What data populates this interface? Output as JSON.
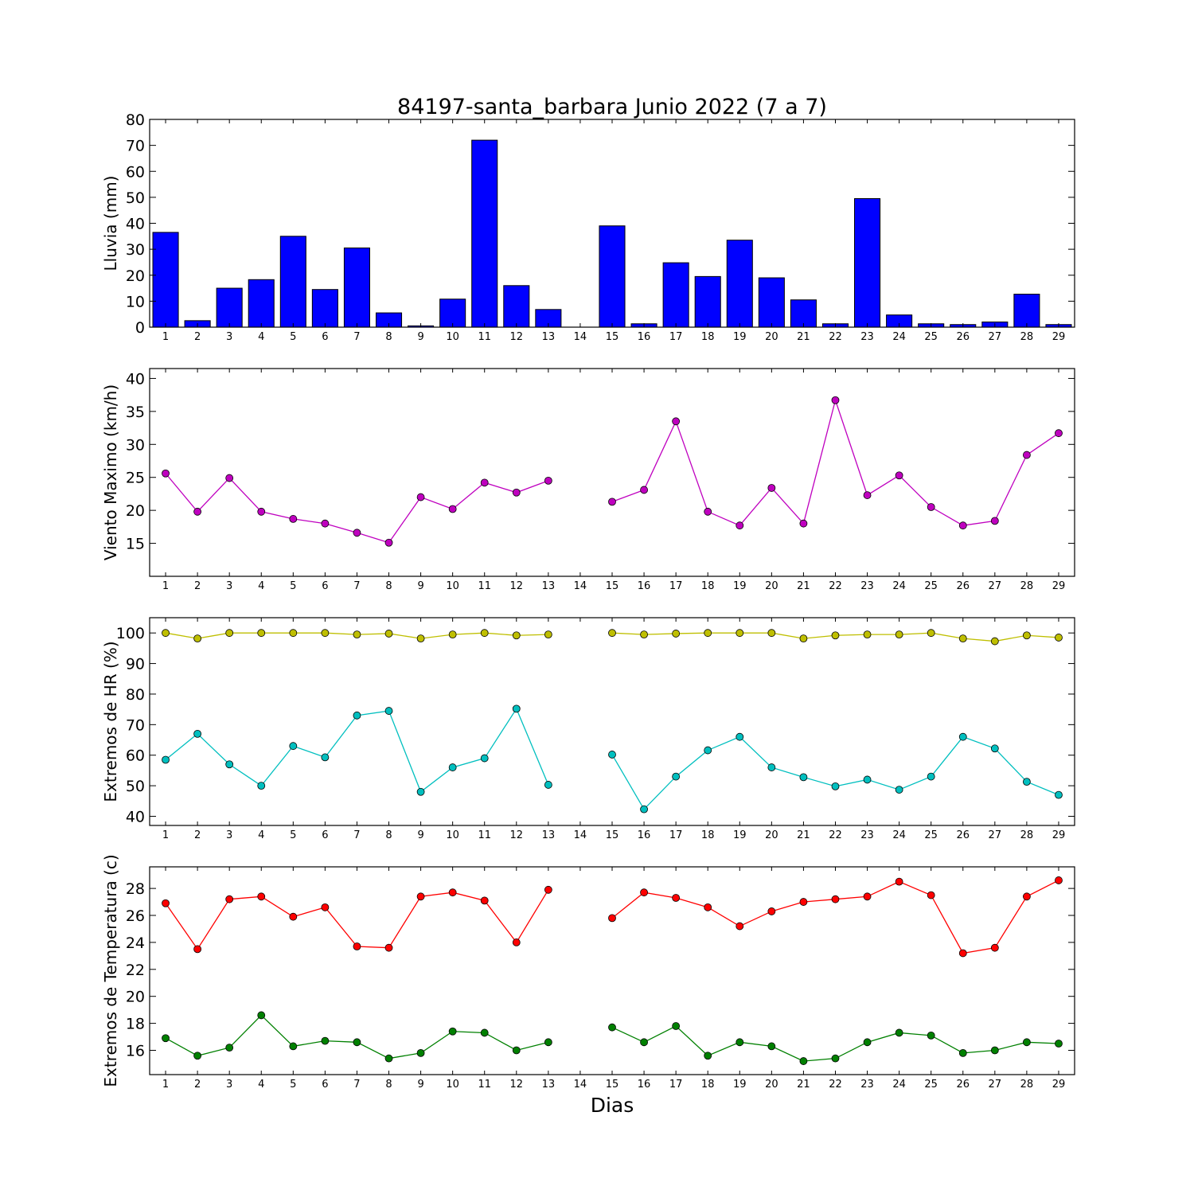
{
  "title": "84197-santa_barbara Junio 2022  (7 a 7)",
  "xlabel": "Dias",
  "days": [
    1,
    2,
    3,
    4,
    5,
    6,
    7,
    8,
    9,
    10,
    11,
    12,
    13,
    14,
    15,
    16,
    17,
    18,
    19,
    20,
    21,
    22,
    23,
    24,
    25,
    26,
    27,
    28,
    29
  ],
  "chart_data": [
    {
      "type": "bar",
      "ylabel": "Lluvia (mm)",
      "ylim": [
        0,
        80
      ],
      "yticks": [
        0,
        10,
        20,
        30,
        40,
        50,
        60,
        70,
        80
      ],
      "grid": false,
      "series": [
        {
          "color": "#0000ff",
          "values": [
            36.5,
            2.5,
            15,
            18.3,
            35,
            14.5,
            30.5,
            5.5,
            0.5,
            10.8,
            72,
            16,
            6.8,
            0,
            39,
            1.3,
            24.8,
            19.5,
            33.5,
            19,
            10.5,
            1.3,
            49.5,
            4.7,
            1.3,
            1,
            2,
            12.7,
            1
          ]
        }
      ]
    },
    {
      "type": "line",
      "ylabel": "Viento Maximo (km/h)",
      "ylim": [
        10,
        41.5
      ],
      "yticks": [
        15,
        20,
        25,
        30,
        35,
        40
      ],
      "grid": false,
      "series": [
        {
          "color": "#bf00bf",
          "values": [
            25.6,
            19.8,
            24.9,
            19.8,
            18.7,
            18,
            16.6,
            15.1,
            22,
            20.2,
            24.2,
            22.7,
            24.5,
            null,
            21.3,
            23.1,
            33.5,
            19.8,
            17.7,
            23.4,
            18,
            36.7,
            22.3,
            25.3,
            20.5,
            17.7,
            18.4,
            28.4,
            31.7
          ]
        }
      ]
    },
    {
      "type": "line",
      "ylabel": "Extremos de HR (%)",
      "ylim": [
        37,
        105
      ],
      "yticks": [
        40,
        50,
        60,
        70,
        80,
        90,
        100
      ],
      "grid": false,
      "series": [
        {
          "color": "#bfbf00",
          "values": [
            100,
            98.2,
            100,
            100,
            100,
            100,
            99.5,
            99.8,
            98.2,
            99.5,
            100,
            99.2,
            99.5,
            null,
            100,
            99.5,
            99.8,
            100,
            100,
            100,
            98.2,
            99.2,
            99.5,
            99.5,
            100,
            98.2,
            97.3,
            99.2,
            98.5
          ]
        },
        {
          "color": "#00bfbf",
          "values": [
            58.5,
            67,
            57,
            50,
            63,
            59.3,
            73,
            74.5,
            48,
            56,
            59,
            75.2,
            50.3,
            null,
            60.2,
            42.3,
            53,
            61.6,
            66,
            56,
            52.8,
            49.8,
            52,
            48.7,
            53,
            66,
            62.2,
            51.3,
            47
          ]
        }
      ]
    },
    {
      "type": "line",
      "ylabel": "Extremos de Temperatura (c)",
      "ylim": [
        14.2,
        29.6
      ],
      "yticks": [
        16,
        18,
        20,
        22,
        24,
        26,
        28
      ],
      "grid": false,
      "series": [
        {
          "color": "#ff0000",
          "values": [
            26.9,
            23.5,
            27.2,
            27.4,
            25.9,
            26.6,
            23.7,
            23.6,
            27.4,
            27.7,
            27.1,
            24,
            27.9,
            null,
            25.8,
            27.7,
            27.3,
            26.6,
            25.2,
            26.3,
            27,
            27.2,
            27.4,
            28.5,
            27.5,
            23.2,
            23.6,
            27.4,
            28.6
          ]
        },
        {
          "color": "#008000",
          "values": [
            16.9,
            15.6,
            16.2,
            18.6,
            16.3,
            16.7,
            16.6,
            15.4,
            15.8,
            17.4,
            17.3,
            16,
            16.6,
            null,
            17.7,
            16.6,
            17.8,
            15.6,
            16.6,
            16.3,
            15.2,
            15.4,
            16.6,
            17.3,
            17.1,
            15.8,
            16,
            16.6,
            16.5
          ]
        }
      ]
    }
  ]
}
